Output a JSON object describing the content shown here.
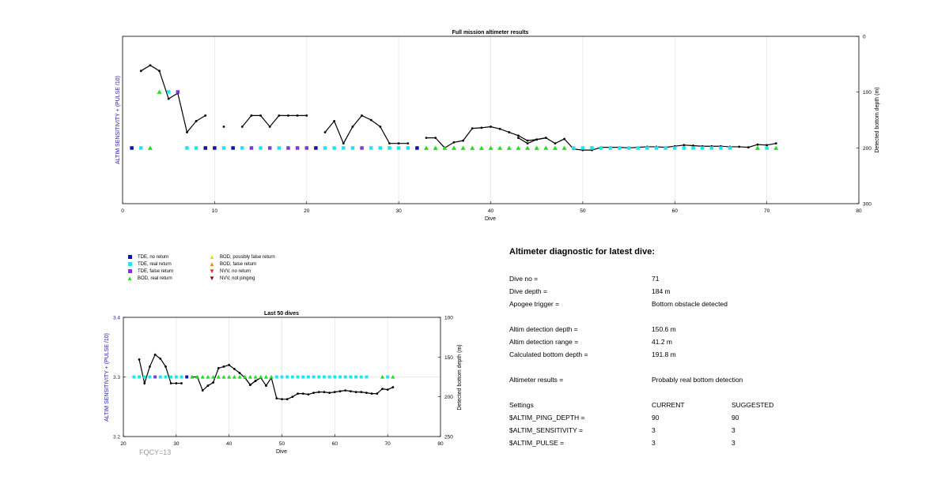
{
  "top_chart": {
    "title": "Full mission altimeter results",
    "xlabel": "Dive",
    "ylabel_left": "ALTIM SENSITIVITY + (PULSE /10)",
    "ylabel_right": "Detected bottom depth (m)",
    "x_ticks": [
      "0",
      "10",
      "20",
      "30",
      "40",
      "50",
      "60",
      "70",
      "80"
    ],
    "right_ticks": [
      "0",
      "100",
      "200",
      "300"
    ]
  },
  "bottom_chart": {
    "title": "Last 50 dives",
    "xlabel": "Dive",
    "ylabel_left": "ALTIM SENSITIVITY + (PULSE /10)",
    "ylabel_right": "Detected bottom depth (m)",
    "x_ticks": [
      "20",
      "30",
      "40",
      "50",
      "60",
      "70",
      "80"
    ],
    "left_ticks": [
      "3.4",
      "3.3",
      "3.2"
    ],
    "right_ticks": [
      "100",
      "150",
      "200",
      "250"
    ],
    "footnote": "FQCY=13"
  },
  "legend": [
    {
      "label": "TDE, no return",
      "symbol": "square",
      "color": "#0a14a8"
    },
    {
      "label": "TDE, real return",
      "symbol": "square",
      "color": "#22e4ee"
    },
    {
      "label": "TDE, false return",
      "symbol": "square",
      "color": "#7a3ad8"
    },
    {
      "label": "BOD, real return",
      "symbol": "triangle-up",
      "color": "#22dd22"
    },
    {
      "label": "BOD, possibly false return",
      "symbol": "triangle-up",
      "color": "#f4d21a"
    },
    {
      "label": "BOD, false return",
      "symbol": "triangle-up",
      "color": "#f08a12"
    },
    {
      "label": "NVV, no return",
      "symbol": "triangle-down",
      "color": "#e2331a"
    },
    {
      "label": "NVV, not pinging",
      "symbol": "triangle-down",
      "color": "#7a1010"
    }
  ],
  "diagnostic": {
    "heading": "Altimeter diagnostic for latest dive:",
    "dive_no_label": "Dive no =",
    "dive_no_value": "71",
    "dive_depth_label": "Dive depth =",
    "dive_depth_value": "184 m",
    "apogee_label": "Apogee trigger =",
    "apogee_value": "Bottom obstacle detected",
    "detection_depth_label": "Altim detection depth =",
    "detection_depth_value": "150.6 m",
    "detection_range_label": "Altim detection range =",
    "detection_range_value": "41.2 m",
    "bottom_depth_label": "Calculated bottom depth =",
    "bottom_depth_value": "191.8 m",
    "results_label": "Altimeter results =",
    "results_value": "Probably real bottom detection",
    "settings_label": "Settings",
    "current_label": "CURRENT",
    "suggested_label": "SUGGESTED",
    "settings": [
      {
        "name": "$ALTIM_PING_DEPTH =",
        "current": "90",
        "suggested": "90"
      },
      {
        "name": "$ALTIM_SENSITIVITY =",
        "current": "3",
        "suggested": "3"
      },
      {
        "name": "$ALTIM_PULSE =",
        "current": "3",
        "suggested": "3"
      }
    ]
  },
  "chart_data": [
    {
      "type": "scatter",
      "title": "Full mission altimeter results",
      "xlabel": "Dive",
      "ylabel": "ALTIM SENSITIVITY + (PULSE /10)",
      "y2label": "Detected bottom depth (m)",
      "xlim": [
        0,
        80
      ],
      "y2lim": [
        300,
        0
      ],
      "markers": [
        {
          "x": 1,
          "y": 3.3,
          "cls": "tde_no"
        },
        {
          "x": 2,
          "y": 3.3,
          "cls": "tde_real"
        },
        {
          "x": 3,
          "y": 3.3,
          "cls": "bod_real"
        },
        {
          "x": 4,
          "y": 3.4,
          "cls": "bod_real"
        },
        {
          "x": 5,
          "y": 3.4,
          "cls": "tde_real"
        },
        {
          "x": 6,
          "y": 3.4,
          "cls": "tde_false"
        },
        {
          "x": 7,
          "y": 3.3,
          "cls": "tde_real"
        },
        {
          "x": 8,
          "y": 3.3,
          "cls": "tde_real"
        },
        {
          "x": 9,
          "y": 3.3,
          "cls": "tde_no"
        },
        {
          "x": 10,
          "y": 3.3,
          "cls": "tde_no"
        },
        {
          "x": 11,
          "y": 3.3,
          "cls": "tde_real"
        },
        {
          "x": 12,
          "y": 3.3,
          "cls": "tde_no"
        },
        {
          "x": 13,
          "y": 3.3,
          "cls": "tde_real"
        },
        {
          "x": 14,
          "y": 3.3,
          "cls": "tde_false"
        },
        {
          "x": 15,
          "y": 3.3,
          "cls": "tde_real"
        },
        {
          "x": 16,
          "y": 3.3,
          "cls": "tde_false"
        },
        {
          "x": 17,
          "y": 3.3,
          "cls": "tde_real"
        },
        {
          "x": 18,
          "y": 3.3,
          "cls": "tde_false"
        },
        {
          "x": 19,
          "y": 3.3,
          "cls": "tde_false"
        },
        {
          "x": 20,
          "y": 3.3,
          "cls": "tde_false"
        },
        {
          "x": 21,
          "y": 3.3,
          "cls": "tde_no"
        },
        {
          "x": 22,
          "y": 3.3,
          "cls": "tde_real"
        },
        {
          "x": 23,
          "y": 3.3,
          "cls": "tde_real"
        },
        {
          "x": 24,
          "y": 3.3,
          "cls": "tde_real"
        },
        {
          "x": 25,
          "y": 3.3,
          "cls": "tde_real"
        },
        {
          "x": 26,
          "y": 3.3,
          "cls": "tde_false"
        },
        {
          "x": 27,
          "y": 3.3,
          "cls": "tde_real"
        },
        {
          "x": 28,
          "y": 3.3,
          "cls": "tde_real"
        },
        {
          "x": 29,
          "y": 3.3,
          "cls": "tde_real"
        },
        {
          "x": 30,
          "y": 3.3,
          "cls": "tde_real"
        },
        {
          "x": 31,
          "y": 3.3,
          "cls": "tde_real"
        },
        {
          "x": 32,
          "y": 3.3,
          "cls": "tde_no"
        },
        {
          "x": 33,
          "y": 3.3,
          "cls": "bod_real"
        },
        {
          "x": 34,
          "y": 3.3,
          "cls": "bod_real"
        },
        {
          "x": 35,
          "y": 3.3,
          "cls": "bod_real"
        },
        {
          "x": 36,
          "y": 3.3,
          "cls": "bod_real"
        },
        {
          "x": 37,
          "y": 3.3,
          "cls": "bod_real"
        },
        {
          "x": 38,
          "y": 3.3,
          "cls": "bod_real"
        },
        {
          "x": 39,
          "y": 3.3,
          "cls": "bod_real"
        },
        {
          "x": 40,
          "y": 3.3,
          "cls": "bod_real"
        },
        {
          "x": 41,
          "y": 3.3,
          "cls": "bod_real"
        },
        {
          "x": 42,
          "y": 3.3,
          "cls": "bod_real"
        },
        {
          "x": 43,
          "y": 3.3,
          "cls": "bod_real"
        },
        {
          "x": 44,
          "y": 3.3,
          "cls": "bod_real"
        },
        {
          "x": 45,
          "y": 3.3,
          "cls": "bod_real"
        },
        {
          "x": 46,
          "y": 3.3,
          "cls": "bod_real"
        },
        {
          "x": 47,
          "y": 3.3,
          "cls": "bod_real"
        },
        {
          "x": 48,
          "y": 3.3,
          "cls": "bod_real"
        },
        {
          "x": 49,
          "y": 3.3,
          "cls": "tde_real"
        },
        {
          "x": 50,
          "y": 3.3,
          "cls": "tde_real"
        },
        {
          "x": 51,
          "y": 3.3,
          "cls": "tde_real"
        },
        {
          "x": 52,
          "y": 3.3,
          "cls": "tde_real"
        },
        {
          "x": 53,
          "y": 3.3,
          "cls": "tde_real"
        },
        {
          "x": 54,
          "y": 3.3,
          "cls": "tde_real"
        },
        {
          "x": 55,
          "y": 3.3,
          "cls": "tde_real"
        },
        {
          "x": 56,
          "y": 3.3,
          "cls": "tde_real"
        },
        {
          "x": 57,
          "y": 3.3,
          "cls": "tde_real"
        },
        {
          "x": 58,
          "y": 3.3,
          "cls": "tde_real"
        },
        {
          "x": 59,
          "y": 3.3,
          "cls": "tde_real"
        },
        {
          "x": 60,
          "y": 3.3,
          "cls": "tde_real"
        },
        {
          "x": 61,
          "y": 3.3,
          "cls": "tde_real"
        },
        {
          "x": 62,
          "y": 3.3,
          "cls": "tde_real"
        },
        {
          "x": 63,
          "y": 3.3,
          "cls": "tde_real"
        },
        {
          "x": 64,
          "y": 3.3,
          "cls": "tde_real"
        },
        {
          "x": 65,
          "y": 3.3,
          "cls": "tde_real"
        },
        {
          "x": 66,
          "y": 3.3,
          "cls": "tde_real"
        },
        {
          "x": 69,
          "y": 3.3,
          "cls": "bod_real"
        },
        {
          "x": 70,
          "y": 3.3,
          "cls": "tde_real"
        },
        {
          "x": 71,
          "y": 3.3,
          "cls": "bod_real"
        }
      ],
      "depth_segments": [
        [
          [
            2,
            62
          ],
          [
            3,
            52
          ],
          [
            4,
            62
          ],
          [
            5,
            112
          ],
          [
            6,
            102
          ],
          [
            7,
            172
          ],
          [
            8,
            152
          ],
          [
            9,
            142
          ]
        ],
        [
          [
            11,
            162
          ]
        ],
        [
          [
            13,
            162
          ],
          [
            14,
            142
          ],
          [
            15,
            142
          ],
          [
            16,
            162
          ],
          [
            17,
            142
          ],
          [
            18,
            142
          ],
          [
            19,
            142
          ],
          [
            20,
            142
          ]
        ],
        [
          [
            22,
            172
          ],
          [
            23,
            152
          ],
          [
            24,
            192
          ],
          [
            25,
            162
          ],
          [
            26,
            142
          ],
          [
            27,
            150
          ],
          [
            28,
            162
          ],
          [
            29,
            192
          ],
          [
            30,
            192
          ],
          [
            31,
            192
          ]
        ],
        [
          [
            33,
            182
          ],
          [
            34,
            182
          ],
          [
            35,
            200
          ],
          [
            36,
            190
          ],
          [
            37,
            187
          ],
          [
            38,
            165
          ],
          [
            39,
            164
          ],
          [
            40,
            162
          ],
          [
            41,
            166
          ],
          [
            42,
            172
          ],
          [
            43,
            178
          ],
          [
            44,
            187
          ],
          [
            45,
            185
          ],
          [
            46,
            182
          ],
          [
            47,
            192
          ],
          [
            48,
            184
          ],
          [
            49,
            202
          ],
          [
            50,
            204
          ],
          [
            51,
            204
          ],
          [
            52,
            199
          ],
          [
            53,
            199
          ],
          [
            54,
            199
          ],
          [
            55,
            200
          ],
          [
            56,
            199
          ],
          [
            57,
            198
          ],
          [
            58,
            198
          ],
          [
            59,
            199
          ],
          [
            60,
            197
          ],
          [
            61,
            195
          ],
          [
            62,
            196
          ],
          [
            63,
            197
          ],
          [
            64,
            197
          ],
          [
            65,
            197
          ],
          [
            66,
            198
          ],
          [
            67,
            198
          ],
          [
            68,
            199
          ],
          [
            69,
            194
          ],
          [
            70,
            195
          ],
          [
            71,
            192
          ]
        ],
        [
          [
            43,
            182
          ],
          [
            44,
            192
          ],
          [
            45,
            185
          ],
          [
            46,
            182
          ]
        ]
      ]
    },
    {
      "type": "scatter",
      "title": "Last 50 dives",
      "xlabel": "Dive",
      "ylabel": "ALTIM SENSITIVITY + (PULSE /10)",
      "y2label": "Detected bottom depth (m)",
      "xlim": [
        20,
        80
      ],
      "ylim": [
        3.2,
        3.4
      ],
      "y2lim": [
        250,
        100
      ],
      "markers_range": [
        22,
        71
      ],
      "depth_segments": [
        [
          [
            23,
            153
          ],
          [
            24,
            183
          ],
          [
            25,
            162
          ],
          [
            26,
            147
          ],
          [
            27,
            152
          ],
          [
            28,
            162
          ],
          [
            29,
            183
          ],
          [
            30,
            183
          ],
          [
            31,
            183
          ]
        ],
        [
          [
            33,
            175
          ],
          [
            34,
            175
          ],
          [
            35,
            192
          ],
          [
            36,
            186
          ],
          [
            37,
            182
          ],
          [
            38,
            164
          ],
          [
            39,
            162
          ],
          [
            40,
            160
          ],
          [
            41,
            165
          ],
          [
            42,
            170
          ],
          [
            43,
            176
          ],
          [
            44,
            185
          ],
          [
            45,
            180
          ],
          [
            46,
            176
          ],
          [
            47,
            186
          ],
          [
            48,
            176
          ],
          [
            49,
            202
          ],
          [
            50,
            203
          ],
          [
            51,
            203
          ],
          [
            52,
            200
          ],
          [
            53,
            196
          ],
          [
            54,
            196
          ],
          [
            55,
            197
          ],
          [
            56,
            195
          ],
          [
            57,
            194
          ],
          [
            58,
            194
          ],
          [
            59,
            195
          ],
          [
            60,
            194
          ],
          [
            61,
            193
          ],
          [
            62,
            192
          ],
          [
            63,
            193
          ],
          [
            64,
            194
          ],
          [
            65,
            194
          ],
          [
            66,
            195
          ],
          [
            67,
            196
          ],
          [
            68,
            196
          ],
          [
            69,
            190
          ],
          [
            70,
            191
          ],
          [
            71,
            188
          ]
        ],
        [
          [
            43,
            176
          ],
          [
            44,
            185
          ],
          [
            45,
            180
          ],
          [
            46,
            176
          ]
        ]
      ]
    }
  ],
  "colors": {
    "tde_no": "#0a14a8",
    "tde_real": "#22e4ee",
    "tde_false": "#7a3ad8",
    "bod_real": "#22dd22",
    "axis_label_left": "#2020a0",
    "line": "#000000",
    "grid": "#e6e6e6"
  }
}
